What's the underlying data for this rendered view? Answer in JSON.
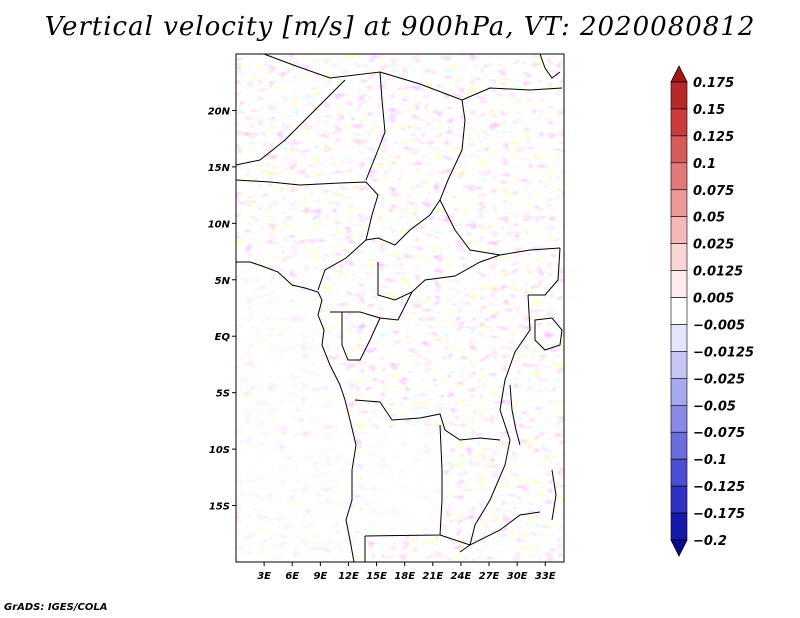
{
  "chart_data": {
    "type": "heatmap",
    "title": "Vertical velocity [m/s] at 900hPa, VT: 2020080812",
    "variable": "Vertical velocity",
    "units": "m/s",
    "level": "900hPa",
    "valid_time": "2020080812",
    "x_axis": {
      "label": "",
      "range": [
        0,
        35
      ],
      "ticks": [
        3,
        6,
        9,
        12,
        15,
        18,
        21,
        24,
        27,
        30,
        33
      ],
      "tick_labels": [
        "3E",
        "6E",
        "9E",
        "12E",
        "15E",
        "18E",
        "21E",
        "24E",
        "27E",
        "30E",
        "33E"
      ]
    },
    "y_axis": {
      "label": "",
      "range": [
        -20,
        25
      ],
      "ticks": [
        20,
        15,
        10,
        5,
        0,
        -5,
        -10,
        -15
      ],
      "tick_labels": [
        "20N",
        "15N",
        "10N",
        "5N",
        "EQ",
        "5S",
        "10S",
        "15S"
      ]
    },
    "colorbar": {
      "levels": [
        "0.175",
        "0.15",
        "0.125",
        "0.1",
        "0.075",
        "0.05",
        "0.025",
        "0.0125",
        "0.005",
        "−0.005",
        "−0.0125",
        "−0.025",
        "−0.05",
        "−0.075",
        "−0.1",
        "−0.125",
        "−0.175",
        "−0.2"
      ],
      "colors": [
        "#a01818",
        "#b82828",
        "#cc3c3c",
        "#d85a5a",
        "#e27878",
        "#ec9898",
        "#f4b8b8",
        "#f9d6d6",
        "#fcecec",
        "#ffffff",
        "#e4e4fb",
        "#c6c6f5",
        "#a8a8ee",
        "#8a8ae6",
        "#6c6cde",
        "#4e4ed4",
        "#3030c4",
        "#1818aa",
        "#0a0a8c"
      ]
    },
    "grid": false,
    "legend": "colorbar-right"
  },
  "credit": "GrADS: IGES/COLA"
}
